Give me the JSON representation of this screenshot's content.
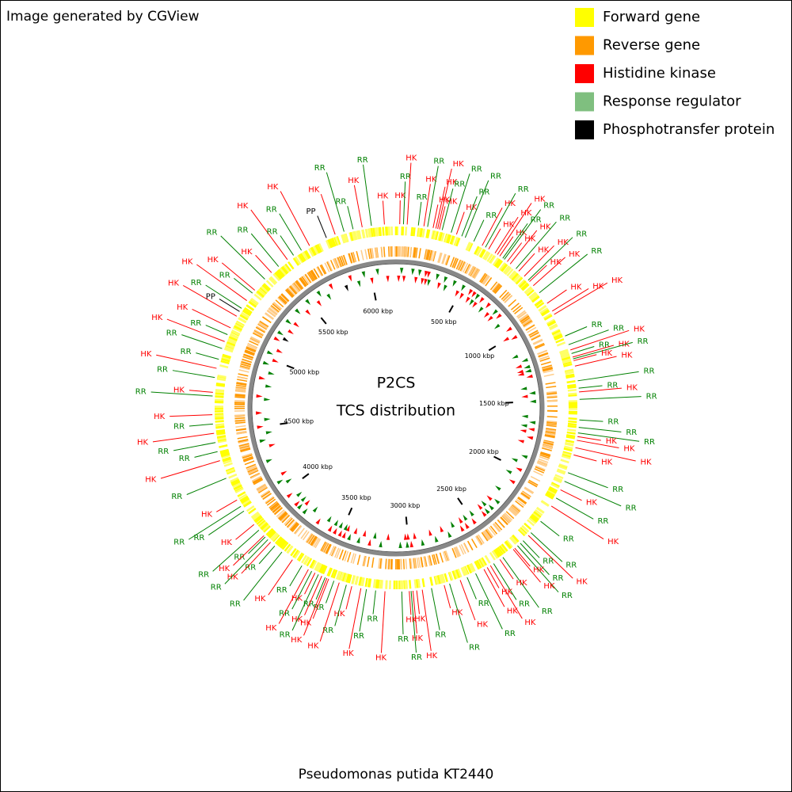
{
  "header": {
    "credit": "Image generated by CGView",
    "caption": "Pseudomonas putida KT2440"
  },
  "center": {
    "title": "P2CS",
    "subtitle": "TCS distribution"
  },
  "legend": [
    {
      "label": "Forward gene",
      "color": "#ffff00"
    },
    {
      "label": "Reverse gene",
      "color": "#ff9900"
    },
    {
      "label": "Histidine kinase",
      "color": "#ff0000"
    },
    {
      "label": "Response regulator",
      "color": "#7fbf7f"
    },
    {
      "label": "Phosphotransfer protein",
      "color": "#000000"
    }
  ],
  "map": {
    "xlim": [
      0,
      6182
    ],
    "ticks": [
      {
        "value": 500,
        "label": "500 kbp"
      },
      {
        "value": 1000,
        "label": "1000 kbp"
      },
      {
        "value": 1500,
        "label": "1500 kbp"
      },
      {
        "value": 2000,
        "label": "2000 kbp"
      },
      {
        "value": 2500,
        "label": "2500 kbp"
      },
      {
        "value": 3000,
        "label": "3000 kbp"
      },
      {
        "value": 3500,
        "label": "3500 kbp"
      },
      {
        "value": 4000,
        "label": "4000 kbp"
      },
      {
        "value": 4500,
        "label": "4500 kbp"
      },
      {
        "value": 5000,
        "label": "5000 kbp"
      },
      {
        "value": 5500,
        "label": "5500 kbp"
      },
      {
        "value": 6000,
        "label": "6000 kbp"
      }
    ],
    "features": [
      {
        "label": "HK",
        "kbp": 20,
        "color": "#ff0000"
      },
      {
        "label": "RR",
        "kbp": 40,
        "color": "#008000"
      },
      {
        "label": "HK",
        "kbp": 60,
        "color": "#ff0000"
      },
      {
        "label": "RR",
        "kbp": 120,
        "color": "#008000"
      },
      {
        "label": "HK",
        "kbp": 150,
        "color": "#ff0000"
      },
      {
        "label": "RR",
        "kbp": 170,
        "color": "#008000"
      },
      {
        "label": "HK",
        "kbp": 200,
        "color": "#ff0000"
      },
      {
        "label": "HK",
        "kbp": 215,
        "color": "#ff0000"
      },
      {
        "label": "HK",
        "kbp": 225,
        "color": "#ff0000"
      },
      {
        "label": "HK",
        "kbp": 235,
        "color": "#ff0000"
      },
      {
        "label": "RR",
        "kbp": 250,
        "color": "#008000"
      },
      {
        "label": "RR",
        "kbp": 300,
        "color": "#008000"
      },
      {
        "label": "HK",
        "kbp": 330,
        "color": "#ff0000"
      },
      {
        "label": "RR",
        "kbp": 360,
        "color": "#008000"
      },
      {
        "label": "RR",
        "kbp": 380,
        "color": "#008000"
      },
      {
        "label": "RR",
        "kbp": 430,
        "color": "#008000"
      },
      {
        "label": "HK",
        "kbp": 480,
        "color": "#ff0000"
      },
      {
        "label": "RR",
        "kbp": 500,
        "color": "#008000"
      },
      {
        "label": "HK",
        "kbp": 520,
        "color": "#ff0000"
      },
      {
        "label": "HK",
        "kbp": 560,
        "color": "#ff0000"
      },
      {
        "label": "HK",
        "kbp": 575,
        "color": "#ff0000"
      },
      {
        "label": "HK",
        "kbp": 590,
        "color": "#ff0000"
      },
      {
        "label": "RR",
        "kbp": 610,
        "color": "#008000"
      },
      {
        "label": "RR",
        "kbp": 620,
        "color": "#008000"
      },
      {
        "label": "HK",
        "kbp": 640,
        "color": "#ff0000"
      },
      {
        "label": "HK",
        "kbp": 660,
        "color": "#ff0000"
      },
      {
        "label": "RR",
        "kbp": 700,
        "color": "#008000"
      },
      {
        "label": "HK",
        "kbp": 720,
        "color": "#ff0000"
      },
      {
        "label": "HK",
        "kbp": 760,
        "color": "#ff0000"
      },
      {
        "label": "RR",
        "kbp": 790,
        "color": "#008000"
      },
      {
        "label": "HK",
        "kbp": 800,
        "color": "#ff0000"
      },
      {
        "label": "HK",
        "kbp": 830,
        "color": "#ff0000"
      },
      {
        "label": "RR",
        "kbp": 880,
        "color": "#008000"
      },
      {
        "label": "HK",
        "kbp": 950,
        "color": "#ff0000"
      },
      {
        "label": "HK",
        "kbp": 1000,
        "color": "#ff0000"
      },
      {
        "label": "HK",
        "kbp": 1020,
        "color": "#ff0000"
      },
      {
        "label": "RR",
        "kbp": 1150,
        "color": "#008000"
      },
      {
        "label": "RR",
        "kbp": 1200,
        "color": "#008000"
      },
      {
        "label": "HK",
        "kbp": 1230,
        "color": "#ff0000"
      },
      {
        "label": "RR",
        "kbp": 1250,
        "color": "#008000"
      },
      {
        "label": "HK",
        "kbp": 1270,
        "color": "#ff0000"
      },
      {
        "label": "RR",
        "kbp": 1280,
        "color": "#008000"
      },
      {
        "label": "HK",
        "kbp": 1290,
        "color": "#ff0000"
      },
      {
        "label": "HK",
        "kbp": 1320,
        "color": "#ff0000"
      },
      {
        "label": "RR",
        "kbp": 1400,
        "color": "#008000"
      },
      {
        "label": "RR",
        "kbp": 1440,
        "color": "#008000"
      },
      {
        "label": "HK",
        "kbp": 1460,
        "color": "#ff0000"
      },
      {
        "label": "RR",
        "kbp": 1500,
        "color": "#008000"
      },
      {
        "label": "RR",
        "kbp": 1610,
        "color": "#008000"
      },
      {
        "label": "RR",
        "kbp": 1650,
        "color": "#008000"
      },
      {
        "label": "RR",
        "kbp": 1680,
        "color": "#008000"
      },
      {
        "label": "HK",
        "kbp": 1700,
        "color": "#ff0000"
      },
      {
        "label": "HK",
        "kbp": 1720,
        "color": "#ff0000"
      },
      {
        "label": "HK",
        "kbp": 1760,
        "color": "#ff0000"
      },
      {
        "label": "HK",
        "kbp": 1800,
        "color": "#ff0000"
      },
      {
        "label": "RR",
        "kbp": 1900,
        "color": "#008000"
      },
      {
        "label": "RR",
        "kbp": 1950,
        "color": "#008000"
      },
      {
        "label": "HK",
        "kbp": 2000,
        "color": "#ff0000"
      },
      {
        "label": "RR",
        "kbp": 2050,
        "color": "#008000"
      },
      {
        "label": "HK",
        "kbp": 2100,
        "color": "#ff0000"
      },
      {
        "label": "RR",
        "kbp": 2200,
        "color": "#008000"
      },
      {
        "label": "RR",
        "kbp": 2280,
        "color": "#008000"
      },
      {
        "label": "HK",
        "kbp": 2300,
        "color": "#ff0000"
      },
      {
        "label": "RR",
        "kbp": 2340,
        "color": "#008000"
      },
      {
        "label": "RR",
        "kbp": 2360,
        "color": "#008000"
      },
      {
        "label": "RR",
        "kbp": 2380,
        "color": "#008000"
      },
      {
        "label": "HK",
        "kbp": 2400,
        "color": "#ff0000"
      },
      {
        "label": "HK",
        "kbp": 2410,
        "color": "#ff0000"
      },
      {
        "label": "RR",
        "kbp": 2480,
        "color": "#008000"
      },
      {
        "label": "HK",
        "kbp": 2500,
        "color": "#ff0000"
      },
      {
        "label": "RR",
        "kbp": 2540,
        "color": "#008000"
      },
      {
        "label": "HK",
        "kbp": 2560,
        "color": "#ff0000"
      },
      {
        "label": "HK",
        "kbp": 2580,
        "color": "#ff0000"
      },
      {
        "label": "HK",
        "kbp": 2600,
        "color": "#ff0000"
      },
      {
        "label": "RR",
        "kbp": 2650,
        "color": "#008000"
      },
      {
        "label": "RR",
        "kbp": 2700,
        "color": "#008000"
      },
      {
        "label": "HK",
        "kbp": 2740,
        "color": "#ff0000"
      },
      {
        "label": "RR",
        "kbp": 2800,
        "color": "#008000"
      },
      {
        "label": "HK",
        "kbp": 2830,
        "color": "#ff0000"
      },
      {
        "label": "RR",
        "kbp": 2900,
        "color": "#008000"
      },
      {
        "label": "HK",
        "kbp": 2950,
        "color": "#ff0000"
      },
      {
        "label": "HK",
        "kbp": 2980,
        "color": "#ff0000"
      },
      {
        "label": "HK",
        "kbp": 3000,
        "color": "#ff0000"
      },
      {
        "label": "RR",
        "kbp": 3010,
        "color": "#008000"
      },
      {
        "label": "HK",
        "kbp": 3020,
        "color": "#ff0000"
      },
      {
        "label": "RR",
        "kbp": 3060,
        "color": "#008000"
      },
      {
        "label": "HK",
        "kbp": 3150,
        "color": "#ff0000"
      },
      {
        "label": "RR",
        "kbp": 3200,
        "color": "#008000"
      },
      {
        "label": "RR",
        "kbp": 3250,
        "color": "#008000"
      },
      {
        "label": "HK",
        "kbp": 3280,
        "color": "#ff0000"
      },
      {
        "label": "HK",
        "kbp": 3330,
        "color": "#ff0000"
      },
      {
        "label": "RR",
        "kbp": 3360,
        "color": "#008000"
      },
      {
        "label": "HK",
        "kbp": 3400,
        "color": "#ff0000"
      },
      {
        "label": "RR",
        "kbp": 3430,
        "color": "#008000"
      },
      {
        "label": "HK",
        "kbp": 3460,
        "color": "#ff0000"
      },
      {
        "label": "HK",
        "kbp": 3470,
        "color": "#ff0000"
      },
      {
        "label": "RR",
        "kbp": 3480,
        "color": "#008000"
      },
      {
        "label": "HK",
        "kbp": 3500,
        "color": "#ff0000"
      },
      {
        "label": "RR",
        "kbp": 3520,
        "color": "#008000"
      },
      {
        "label": "HK",
        "kbp": 3540,
        "color": "#ff0000"
      },
      {
        "label": "RR",
        "kbp": 3560,
        "color": "#008000"
      },
      {
        "label": "HK",
        "kbp": 3580,
        "color": "#ff0000"
      },
      {
        "label": "RR",
        "kbp": 3620,
        "color": "#008000"
      },
      {
        "label": "HK",
        "kbp": 3680,
        "color": "#ff0000"
      },
      {
        "label": "RR",
        "kbp": 3750,
        "color": "#008000"
      },
      {
        "label": "RR",
        "kbp": 3800,
        "color": "#008000"
      },
      {
        "label": "HK",
        "kbp": 3830,
        "color": "#ff0000"
      },
      {
        "label": "RR",
        "kbp": 3850,
        "color": "#008000"
      },
      {
        "label": "RR",
        "kbp": 3870,
        "color": "#008000"
      },
      {
        "label": "HK",
        "kbp": 3880,
        "color": "#ff0000"
      },
      {
        "label": "RR",
        "kbp": 3920,
        "color": "#008000"
      },
      {
        "label": "HK",
        "kbp": 3960,
        "color": "#ff0000"
      },
      {
        "label": "RR",
        "kbp": 4050,
        "color": "#008000"
      },
      {
        "label": "RR",
        "kbp": 4080,
        "color": "#008000"
      },
      {
        "label": "HK",
        "kbp": 4120,
        "color": "#ff0000"
      },
      {
        "label": "RR",
        "kbp": 4250,
        "color": "#008000"
      },
      {
        "label": "HK",
        "kbp": 4350,
        "color": "#ff0000"
      },
      {
        "label": "RR",
        "kbp": 4400,
        "color": "#008000"
      },
      {
        "label": "RR",
        "kbp": 4450,
        "color": "#008000"
      },
      {
        "label": "HK",
        "kbp": 4500,
        "color": "#ff0000"
      },
      {
        "label": "RR",
        "kbp": 4550,
        "color": "#008000"
      },
      {
        "label": "HK",
        "kbp": 4600,
        "color": "#ff0000"
      },
      {
        "label": "RR",
        "kbp": 4700,
        "color": "#008000"
      },
      {
        "label": "HK",
        "kbp": 4720,
        "color": "#ff0000"
      },
      {
        "label": "RR",
        "kbp": 4800,
        "color": "#008000"
      },
      {
        "label": "HK",
        "kbp": 4850,
        "color": "#ff0000"
      },
      {
        "label": "RR",
        "kbp": 4900,
        "color": "#008000"
      },
      {
        "label": "RR",
        "kbp": 4960,
        "color": "#008000"
      },
      {
        "label": "HK",
        "kbp": 5000,
        "color": "#ff0000"
      },
      {
        "label": "RR",
        "kbp": 5040,
        "color": "#008000"
      },
      {
        "label": "HK",
        "kbp": 5080,
        "color": "#ff0000"
      },
      {
        "label": "HK",
        "kbp": 5150,
        "color": "#ff0000"
      },
      {
        "label": "PP",
        "kbp": 5180,
        "color": "#000000"
      },
      {
        "label": "RR",
        "kbp": 5200,
        "color": "#008000"
      },
      {
        "label": "HK",
        "kbp": 5250,
        "color": "#ff0000"
      },
      {
        "label": "RR",
        "kbp": 5300,
        "color": "#008000"
      },
      {
        "label": "HK",
        "kbp": 5320,
        "color": "#ff0000"
      },
      {
        "label": "RR",
        "kbp": 5400,
        "color": "#008000"
      },
      {
        "label": "HK",
        "kbp": 5450,
        "color": "#ff0000"
      },
      {
        "label": "RR",
        "kbp": 5500,
        "color": "#008000"
      },
      {
        "label": "HK",
        "kbp": 5560,
        "color": "#ff0000"
      },
      {
        "label": "RR",
        "kbp": 5600,
        "color": "#008000"
      },
      {
        "label": "RR",
        "kbp": 5650,
        "color": "#008000"
      },
      {
        "label": "HK",
        "kbp": 5700,
        "color": "#ff0000"
      },
      {
        "label": "PP",
        "kbp": 5800,
        "color": "#000000"
      },
      {
        "label": "HK",
        "kbp": 5850,
        "color": "#ff0000"
      },
      {
        "label": "RR",
        "kbp": 5900,
        "color": "#008000"
      },
      {
        "label": "RR",
        "kbp": 5950,
        "color": "#008000"
      },
      {
        "label": "HK",
        "kbp": 6000,
        "color": "#ff0000"
      },
      {
        "label": "RR",
        "kbp": 6050,
        "color": "#008000"
      },
      {
        "label": "HK",
        "kbp": 6120,
        "color": "#ff0000"
      }
    ]
  }
}
